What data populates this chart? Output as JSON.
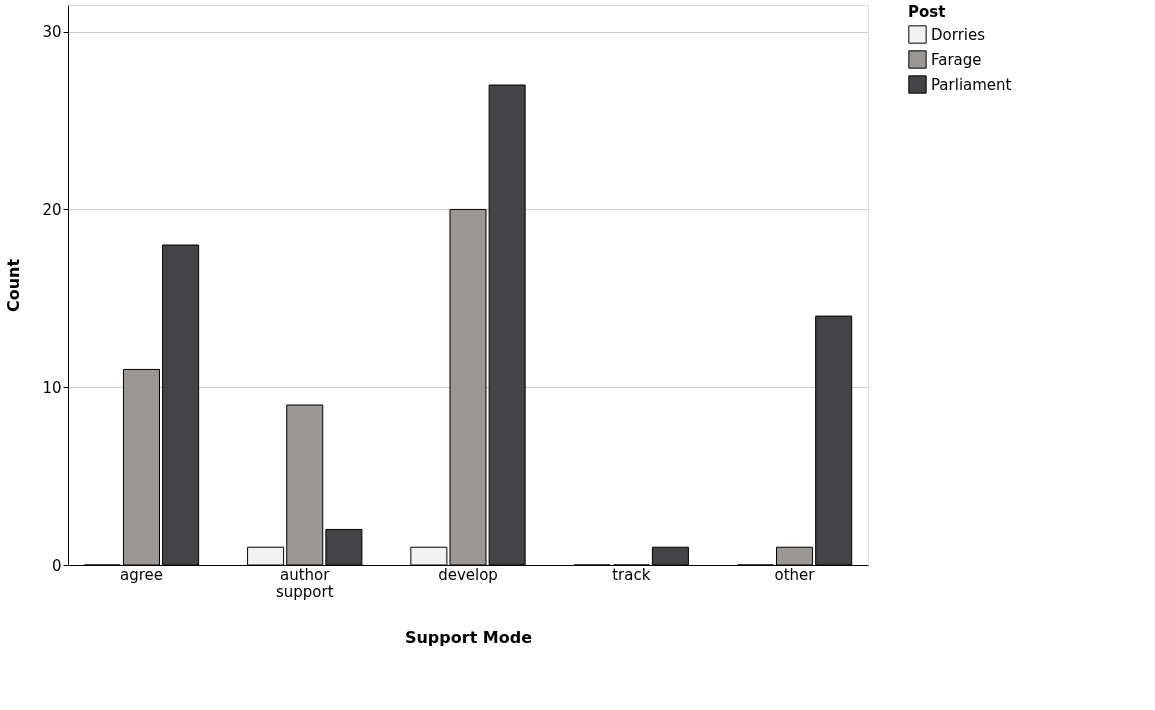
{
  "chart_data": {
    "type": "bar",
    "xlabel": "Support Mode",
    "ylabel": "Count",
    "legend_title": "Post",
    "categories": [
      "agree",
      "author support",
      "develop",
      "track",
      "other"
    ],
    "series": [
      {
        "name": "Dorries",
        "color": "#f2f2f2",
        "values": [
          0,
          1,
          1,
          0,
          0
        ]
      },
      {
        "name": "Farage",
        "color": "#9a9795",
        "values": [
          11,
          9,
          20,
          0,
          1
        ]
      },
      {
        "name": "Parliament",
        "color": "#444446",
        "values": [
          18,
          2,
          27,
          1,
          14
        ]
      }
    ],
    "ylim": [
      0,
      31.5
    ],
    "yticks": [
      0,
      10,
      20,
      30
    ],
    "grid": "y",
    "legend": "top right"
  }
}
